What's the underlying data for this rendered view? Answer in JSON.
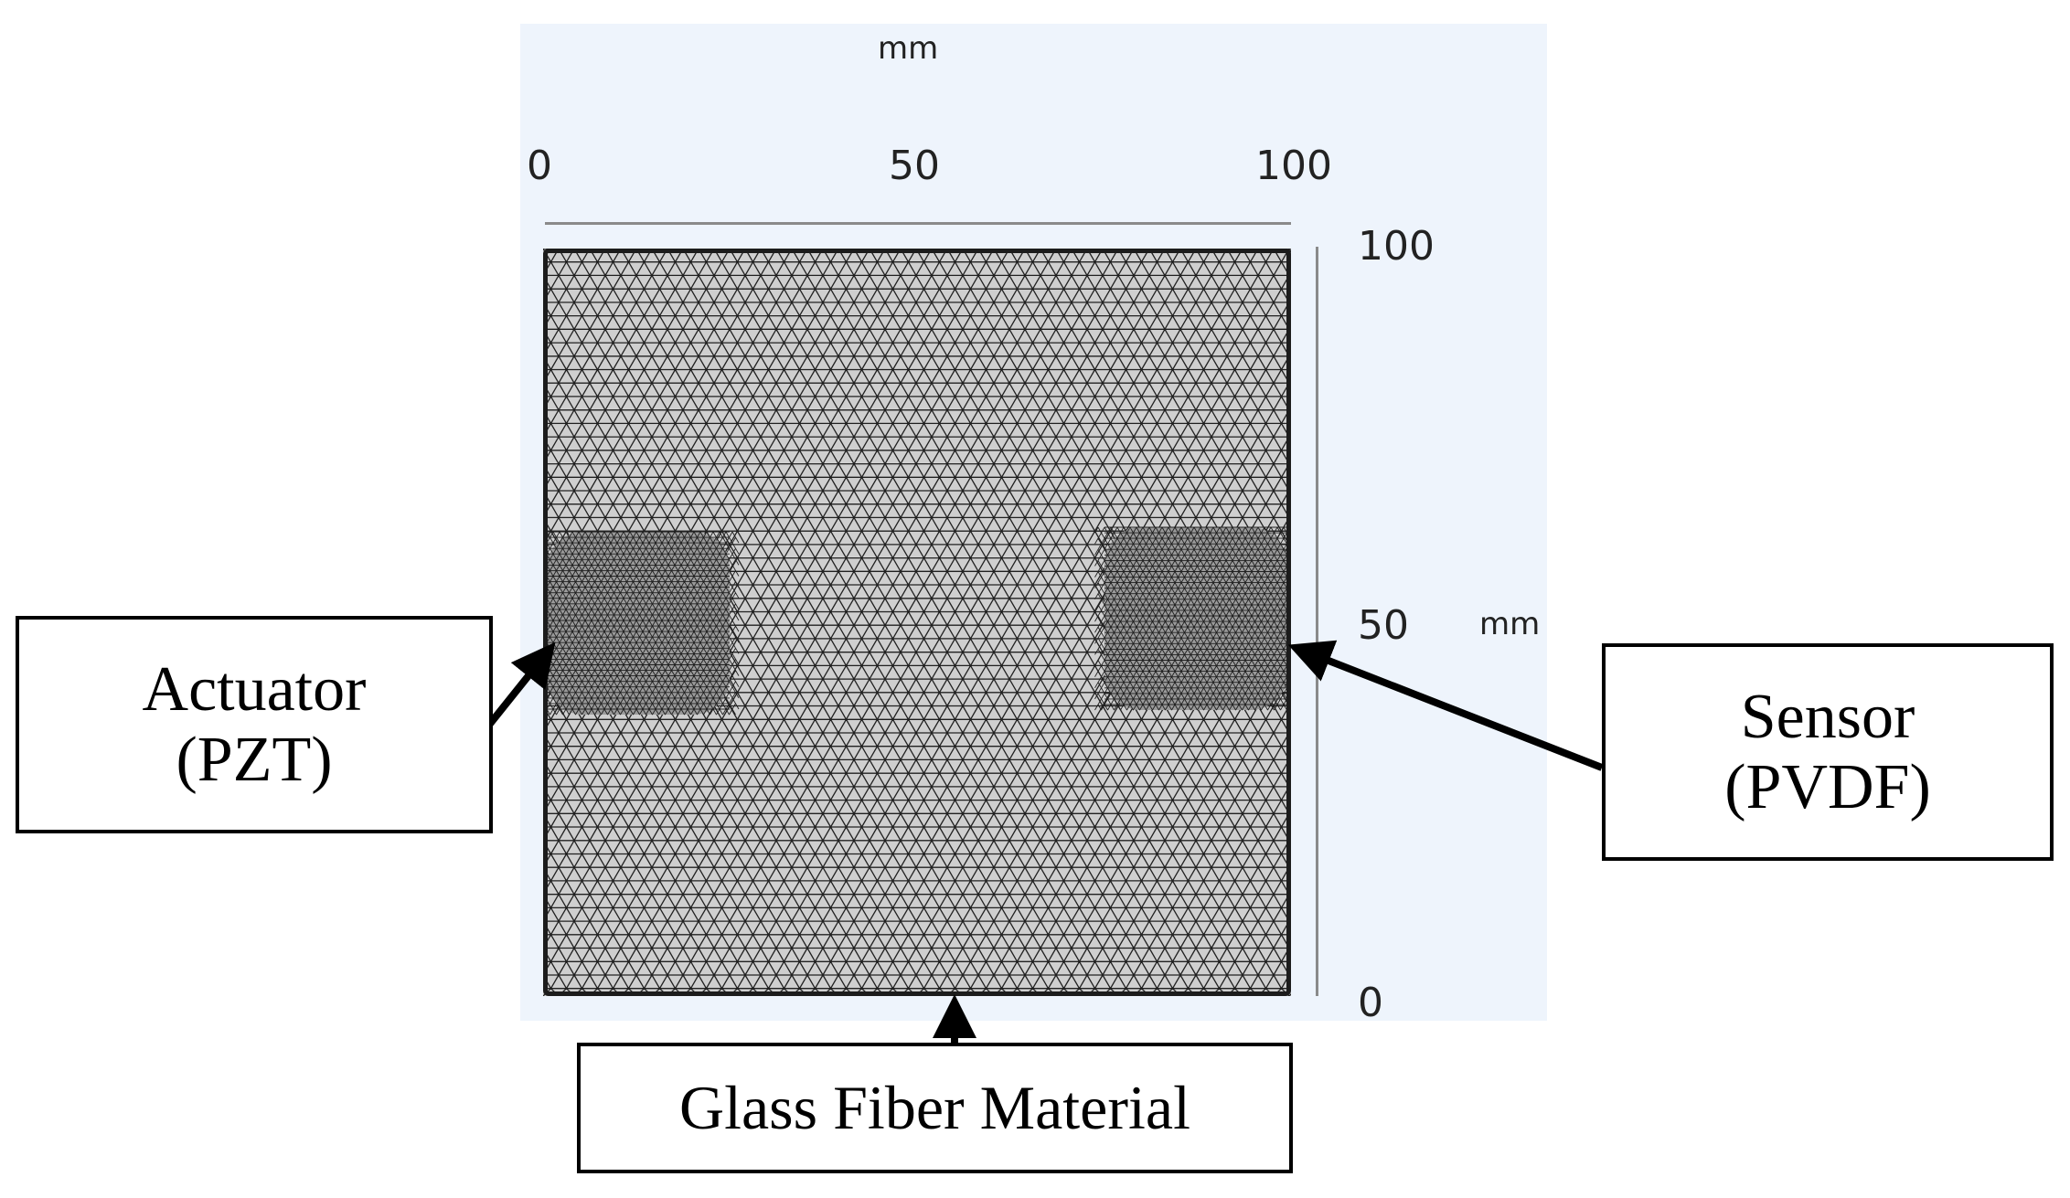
{
  "axes": {
    "x_unit": "mm",
    "y_unit": "mm",
    "x_ticks": [
      "0",
      "50",
      "100"
    ],
    "y_ticks": [
      "100",
      "50",
      "0"
    ]
  },
  "labels": {
    "actuator": {
      "line1": "Actuator",
      "line2": "(PZT)"
    },
    "sensor": {
      "line1": "Sensor",
      "line2": "(PVDF)"
    },
    "material": "Glass Fiber Material"
  },
  "colors": {
    "view_background": "#eef4fc",
    "mesh_fill": "#cfcfcf",
    "mesh_lines": "#202020",
    "arrows": "#000000"
  }
}
